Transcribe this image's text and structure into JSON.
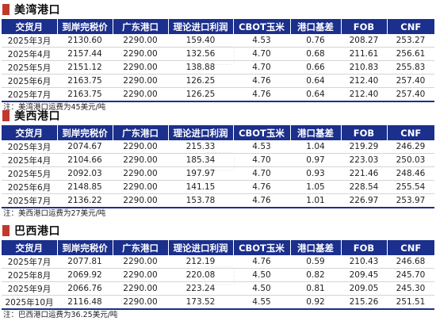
{
  "columns": [
    "交货月",
    "到岸完税价",
    "广东港口",
    "理论进口利润",
    "CBOT玉米",
    "港口基差",
    "FOB",
    "CNF"
  ],
  "sections": [
    {
      "title": "美湾港口",
      "rows": [
        [
          "2025年3月",
          "2130.60",
          "2290.00",
          "159.40",
          "4.53",
          "0.76",
          "208.27",
          "253.27"
        ],
        [
          "2025年4月",
          "2157.44",
          "2290.00",
          "132.56",
          "4.70",
          "0.68",
          "211.61",
          "256.61"
        ],
        [
          "2025年5月",
          "2151.12",
          "2290.00",
          "138.88",
          "4.70",
          "0.66",
          "210.83",
          "255.83"
        ],
        [
          "2025年6月",
          "2163.75",
          "2290.00",
          "126.25",
          "4.76",
          "0.64",
          "212.40",
          "257.40"
        ],
        [
          "2025年7月",
          "2163.75",
          "2290.00",
          "126.25",
          "4.76",
          "0.64",
          "212.40",
          "257.40"
        ]
      ],
      "note": "注：美湾港口运费为45美元/吨"
    },
    {
      "title": "美西港口",
      "rows": [
        [
          "2025年3月",
          "2074.67",
          "2290.00",
          "215.33",
          "4.53",
          "1.04",
          "219.29",
          "246.29"
        ],
        [
          "2025年4月",
          "2104.66",
          "2290.00",
          "185.34",
          "4.70",
          "0.97",
          "223.03",
          "250.03"
        ],
        [
          "2025年5月",
          "2092.03",
          "2290.00",
          "197.97",
          "4.70",
          "0.93",
          "221.46",
          "248.46"
        ],
        [
          "2025年6月",
          "2148.85",
          "2290.00",
          "141.15",
          "4.76",
          "1.05",
          "228.54",
          "255.54"
        ],
        [
          "2025年7月",
          "2136.22",
          "2290.00",
          "153.78",
          "4.76",
          "1.01",
          "226.97",
          "253.97"
        ]
      ],
      "note": "注：美西港口运费为27美元/吨"
    },
    {
      "title": "巴西港口",
      "rows": [
        [
          "2025年7月",
          "2077.81",
          "2290.00",
          "212.19",
          "4.76",
          "0.59",
          "210.43",
          "246.68"
        ],
        [
          "2025年8月",
          "2069.92",
          "2290.00",
          "220.08",
          "4.50",
          "0.82",
          "209.45",
          "245.70"
        ],
        [
          "2025年9月",
          "2066.76",
          "2290.00",
          "223.24",
          "4.50",
          "0.81",
          "209.05",
          "245.30"
        ],
        [
          "2025年10月",
          "2116.48",
          "2290.00",
          "173.52",
          "4.55",
          "0.92",
          "215.26",
          "251.51"
        ]
      ],
      "note": "注：巴西港口运费为36.25美元/吨"
    }
  ]
}
